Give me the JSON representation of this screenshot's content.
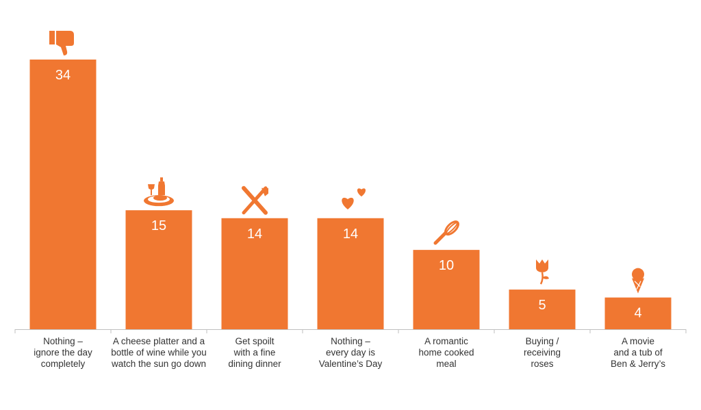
{
  "colors": {
    "bar": "#F07731",
    "axis": "#BFBFBF",
    "label": "#333333",
    "value": "#FFFFFF"
  },
  "chart_data": {
    "type": "bar",
    "title": "",
    "xlabel": "",
    "ylabel": "",
    "ylim": [
      0,
      36
    ],
    "grid": false,
    "legend": "none",
    "categories": [
      [
        "Nothing –",
        "ignore the day",
        "completely"
      ],
      [
        "A cheese platter and a",
        "bottle of wine while you",
        "watch the sun go down"
      ],
      [
        "Get spoilt",
        "with a fine",
        "dining dinner"
      ],
      [
        "Nothing –",
        "every day is",
        "Valentine’s Day"
      ],
      [
        "A romantic",
        "home cooked",
        "meal"
      ],
      [
        "Buying /",
        "receiving",
        "roses"
      ],
      [
        "A movie",
        "and a tub of",
        "Ben & Jerry’s"
      ]
    ],
    "values": [
      34,
      15,
      14,
      14,
      10,
      5,
      4
    ],
    "icons": [
      "thumbs-down-icon",
      "wine-and-cheese-icon",
      "fork-and-knife-icon",
      "hearts-icon",
      "whisk-icon",
      "rose-icon",
      "ice-cream-icon"
    ]
  }
}
